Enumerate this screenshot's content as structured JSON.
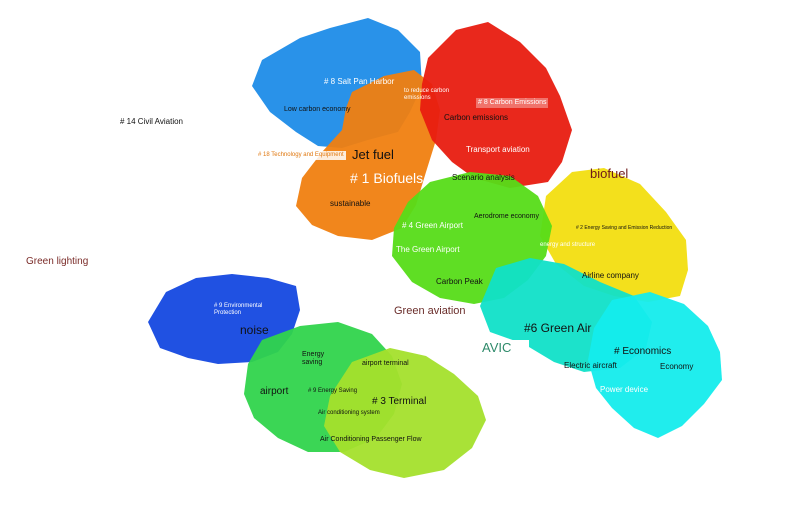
{
  "colors": {
    "biofuels": "#f07f10",
    "salt_pan": "#1e8ce8",
    "carbon": "#e81c10",
    "green_airport": "#56dc18",
    "energy": "#f2de10",
    "green_air": "#10e0c8",
    "economics": "#14ecec",
    "environmental": "#1448e0",
    "energy_saving": "#30d44c",
    "terminal": "#a4e02c"
  },
  "labels": {
    "civil_aviation": "# 14 Civil Aviation",
    "green_lighting": "Green lighting",
    "salt_pan_harbor": "# 8 Salt Pan Harbor",
    "low_carbon_economy": "Low carbon economy",
    "reduce_carbon": "to reduce carbon emissions",
    "carbon_emissions_cluster": "# 8 Carbon Emissions",
    "carbon_emissions": "Carbon emissions",
    "transport_aviation": "Transport aviation",
    "tech_equipment": "# 18 Technology and Equipment",
    "jet_fuel": "Jet fuel",
    "biofuels_cluster": "# 1 Biofuels",
    "sustainable": "sustainable",
    "scenario_analysis": "Scenario analysis",
    "aerodrome_economy": "Aerodrome economy",
    "green_airport_cluster": "# 4 Green Airport",
    "the_green_airport": "The Green Airport",
    "carbon_peak": "Carbon Peak",
    "biofuel": "biofuel",
    "energy_saving_cluster": "# 2 Energy Saving and Emission Reduction",
    "energy_overlap": "energy and structure",
    "airline_company": "Airline company",
    "green_aviation": "Green aviation",
    "green_air_cluster": "#6 Green Air",
    "avic": "AVIC",
    "economics_cluster": "# Economics",
    "electric_aircraft": "Electric aircraft",
    "economy": "Economy",
    "power_device": "Power device",
    "environmental_protection": "# 9 Environmental Protection",
    "noise": "noise",
    "energy_saving_word": "Energy saving",
    "airport_terminal": "airport terminal",
    "airport": "airport",
    "energy_saving_small": "# 9 Energy Saving",
    "terminal_cluster": "# 3 Terminal",
    "air_conditioning_system": "Air conditioning system",
    "air_conditioning_flow": "Air Conditioning Passenger Flow"
  }
}
